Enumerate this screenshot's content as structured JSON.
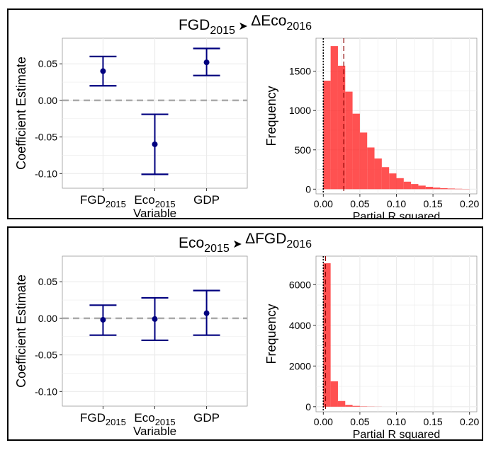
{
  "panels": [
    {
      "title": {
        "left": "FGD",
        "left_sub": "2015",
        "arrow": "➤",
        "right": "ΔEco",
        "right_sub": "2016"
      },
      "coef": {
        "ylabel": "Coefficient Estimate",
        "xlabel": "Variable",
        "ylim": [
          -0.12,
          0.085
        ],
        "yticks": [
          "0.05",
          "0.00",
          "-0.05",
          "-0.10"
        ],
        "ytick_values": [
          0.05,
          0.0,
          -0.05,
          -0.1
        ],
        "categories": [
          {
            "base": "FGD",
            "sub": "2015"
          },
          {
            "base": "Eco",
            "sub": "2015"
          },
          {
            "base": "GDP",
            "sub": ""
          }
        ]
      },
      "hist": {
        "ylabel": "Frequency",
        "xlabel": "Partial R squared",
        "xlim": [
          -0.01,
          0.21
        ],
        "ylim": [
          -60,
          1920
        ],
        "xticks": [
          "0.00",
          "0.05",
          "0.10",
          "0.15",
          "0.20"
        ],
        "xtick_values": [
          0,
          0.05,
          0.1,
          0.15,
          0.2
        ],
        "yticks": [
          "0",
          "500",
          "1000",
          "1500"
        ],
        "ytick_values": [
          0,
          500,
          1000,
          1500
        ]
      }
    },
    {
      "title": {
        "left": "Eco",
        "left_sub": "2015",
        "arrow": "➤",
        "right": "ΔFGD",
        "right_sub": "2016"
      },
      "coef": {
        "ylabel": "Coefficient Estimate",
        "xlabel": "Variable",
        "ylim": [
          -0.12,
          0.085
        ],
        "yticks": [
          "0.05",
          "0.00",
          "-0.05",
          "-0.10"
        ],
        "ytick_values": [
          0.05,
          0.0,
          -0.05,
          -0.1
        ],
        "categories": [
          {
            "base": "FGD",
            "sub": "2015"
          },
          {
            "base": "Eco",
            "sub": "2015"
          },
          {
            "base": "GDP",
            "sub": ""
          }
        ]
      },
      "hist": {
        "ylabel": "Frequency",
        "xlabel": "Partial R squared",
        "xlim": [
          -0.01,
          0.21
        ],
        "ylim": [
          -250,
          7400
        ],
        "xticks": [
          "0.00",
          "0.05",
          "0.10",
          "0.15",
          "0.20"
        ],
        "xtick_values": [
          0,
          0.05,
          0.1,
          0.15,
          0.2
        ],
        "yticks": [
          "0",
          "2000",
          "4000",
          "6000"
        ],
        "ytick_values": [
          0,
          2000,
          4000,
          6000
        ]
      }
    }
  ],
  "colors": {
    "estimate": "#00007f",
    "bar": "#ff3333",
    "zero_line": "#aaaaaa",
    "grid": "#ebebeb",
    "dark_red": "#8b0000"
  },
  "chart_data": [
    {
      "type": "scatter",
      "panel": "FGD2015 -> ΔEco2016",
      "x": [
        "FGD2015",
        "Eco2015",
        "GDP"
      ],
      "estimate": [
        0.04,
        -0.06,
        0.052
      ],
      "ci_low": [
        0.02,
        -0.101,
        0.034
      ],
      "ci_high": [
        0.06,
        -0.019,
        0.071
      ],
      "xlabel": "Variable",
      "ylabel": "Coefficient Estimate",
      "reference_line": 0
    },
    {
      "type": "bar",
      "panel": "FGD2015 -> ΔEco2016",
      "bin_width": 0.01,
      "bin_starts": [
        0.0,
        0.01,
        0.02,
        0.03,
        0.04,
        0.05,
        0.06,
        0.07,
        0.08,
        0.09,
        0.1,
        0.11,
        0.12,
        0.13,
        0.14,
        0.15,
        0.16,
        0.17,
        0.18,
        0.19
      ],
      "values": [
        1380,
        1820,
        1570,
        1240,
        960,
        720,
        530,
        390,
        280,
        200,
        140,
        95,
        65,
        45,
        30,
        20,
        12,
        8,
        5,
        3
      ],
      "vline_dotted": 0.0,
      "vline_dashed": 0.028,
      "xlabel": "Partial R squared",
      "ylabel": "Frequency"
    },
    {
      "type": "scatter",
      "panel": "Eco2015 -> ΔFGD2016",
      "x": [
        "FGD2015",
        "Eco2015",
        "GDP"
      ],
      "estimate": [
        -0.002,
        -0.001,
        0.007
      ],
      "ci_low": [
        -0.023,
        -0.03,
        -0.023
      ],
      "ci_high": [
        0.018,
        0.028,
        0.038
      ],
      "xlabel": "Variable",
      "ylabel": "Coefficient Estimate",
      "reference_line": 0
    },
    {
      "type": "bar",
      "panel": "Eco2015 -> ΔFGD2016",
      "bin_width": 0.01,
      "bin_starts": [
        0.0,
        0.01,
        0.02,
        0.03,
        0.04,
        0.05,
        0.06,
        0.07
      ],
      "values": [
        7050,
        1250,
        280,
        90,
        40,
        15,
        8,
        4
      ],
      "vline_dotted": 0.0,
      "vline_dashed": 0.003,
      "xlabel": "Partial R squared",
      "ylabel": "Frequency"
    }
  ]
}
